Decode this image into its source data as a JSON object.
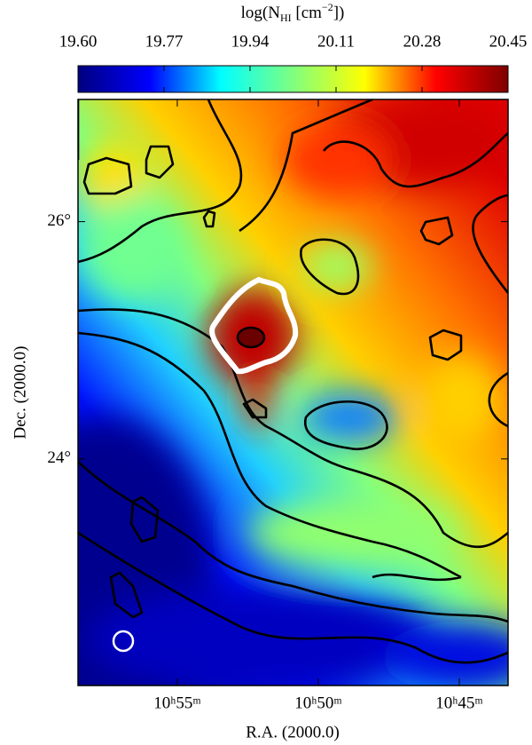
{
  "chart_data": {
    "type": "heatmap",
    "colorbar_label_parts": [
      "log(N",
      "HI",
      " [cm",
      "−2",
      "])"
    ],
    "x_label": "R.A. (2000.0)",
    "y_label": "Dec. (2000.0)",
    "clim": [
      19.6,
      20.45
    ],
    "cticks": [
      {
        "value": 19.6,
        "label": "19.60"
      },
      {
        "value": 19.77,
        "label": "19.77"
      },
      {
        "value": 19.94,
        "label": "19.94"
      },
      {
        "value": 20.11,
        "label": "20.11"
      },
      {
        "value": 20.28,
        "label": "20.28"
      },
      {
        "value": 20.45,
        "label": "20.45"
      }
    ],
    "colormap": [
      "#00007f",
      "#0000ff",
      "#00ffff",
      "#7fff7f",
      "#ffff00",
      "#ff0000",
      "#7f0000"
    ],
    "xlim": [
      658.52,
      643.27
    ],
    "xticks": [
      {
        "value": 655,
        "label": "10ʰ55ᵐ"
      },
      {
        "value": 650,
        "label": "10ʰ50ᵐ"
      },
      {
        "value": 645,
        "label": "10ʰ45ᵐ"
      }
    ],
    "ylim": [
      22.09,
      27.03
    ],
    "yticks": [
      {
        "value": 24,
        "label": "24°"
      },
      {
        "value": 26,
        "label": "26°"
      }
    ]
  }
}
